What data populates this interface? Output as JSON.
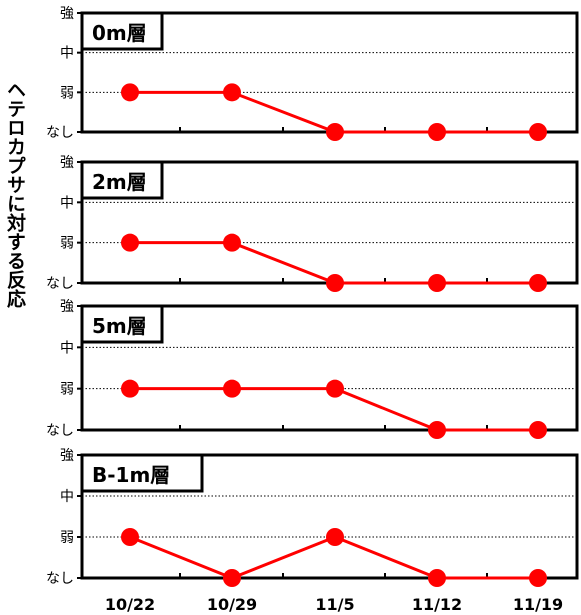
{
  "chart_data": {
    "type": "line",
    "ylabel": "ヘテロカプサに対する反応",
    "x_categories": [
      "10/22",
      "10/29",
      "11/5",
      "11/12",
      "11/19"
    ],
    "y_levels": [
      "なし",
      "弱",
      "中",
      "強"
    ],
    "series_color": "#ff0000",
    "panels": [
      {
        "title": "0m層",
        "values": [
          1,
          1,
          0,
          0,
          0
        ]
      },
      {
        "title": "2m層",
        "values": [
          1,
          1,
          0,
          0,
          0
        ]
      },
      {
        "title": "5m層",
        "values": [
          1,
          1,
          1,
          0,
          0
        ]
      },
      {
        "title": "B-1m層",
        "values": [
          1,
          0,
          1,
          0,
          0
        ]
      }
    ]
  }
}
